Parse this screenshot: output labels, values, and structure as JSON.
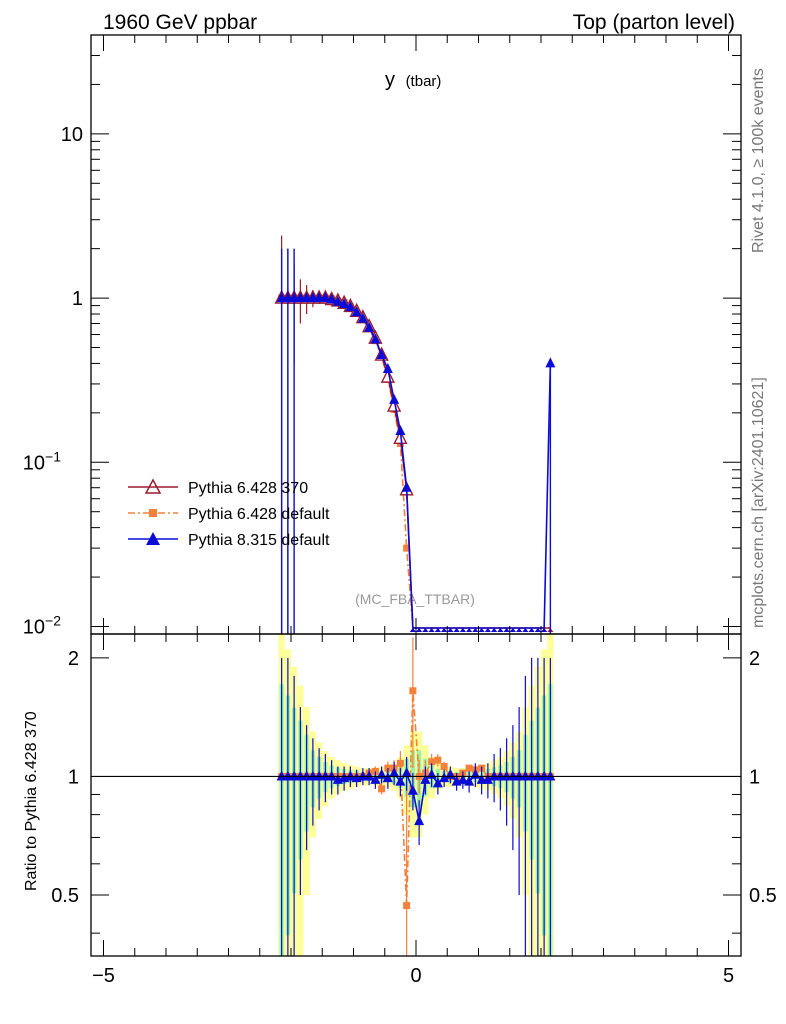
{
  "header": {
    "left": "1960 GeV ppbar",
    "right": "Top (parton level)"
  },
  "side_labels": {
    "top": "Rivet 4.1.0, ≥ 100k events",
    "bottom": "mcplots.cern.ch [arXiv:2401.10621]"
  },
  "chart_data": {
    "type": "line",
    "title_main": "y",
    "title_sub": "(tbar)",
    "analysis": "(MC_FBA_TTBAR)",
    "xlim": [
      -5.2,
      5.2
    ],
    "top_ylim": [
      0.009,
      40
    ],
    "top_yscale": "log",
    "top_ticks": [
      {
        "v": 10,
        "label": "10"
      },
      {
        "v": 1,
        "label": "1"
      },
      {
        "v": 0.1,
        "label": "10",
        "sup": "−1"
      },
      {
        "v": 0.01,
        "label": "10",
        "sup": "−2"
      }
    ],
    "ratio_ylabel": "Ratio to Pythia 6.428 370",
    "ratio_ylim": [
      0.35,
      2.3
    ],
    "ratio_ticks": [
      {
        "v": 2,
        "label": "2"
      },
      {
        "v": 1,
        "label": "1"
      },
      {
        "v": 0.5,
        "label": "0.5"
      }
    ],
    "x_ticks": [
      {
        "v": -5,
        "label": "−5"
      },
      {
        "v": 0,
        "label": "0"
      },
      {
        "v": 5,
        "label": "5"
      }
    ],
    "x": [
      -2.15,
      -2.05,
      -1.95,
      -1.85,
      -1.75,
      -1.65,
      -1.55,
      -1.45,
      -1.35,
      -1.25,
      -1.15,
      -1.05,
      -0.95,
      -0.85,
      -0.75,
      -0.65,
      -0.55,
      -0.45,
      -0.35,
      -0.25,
      -0.15,
      -0.05,
      0.05,
      0.15,
      0.25,
      0.35,
      0.45,
      0.55,
      0.65,
      0.75,
      0.85,
      0.95,
      1.05,
      1.15,
      1.25,
      1.35,
      1.45,
      1.55,
      1.65,
      1.75,
      1.85,
      1.95,
      2.05,
      2.15
    ],
    "series": [
      {
        "name": "Pythia 6.428 370",
        "color": "#9b1c2c",
        "marker": "triangle-open",
        "dash": "",
        "values": [
          1.0,
          1.0,
          1.0,
          1.0,
          1.0,
          1.0,
          1.0,
          1.0,
          0.98,
          0.96,
          0.93,
          0.89,
          0.83,
          0.76,
          0.67,
          0.57,
          0.45,
          0.33,
          0.22,
          0.14,
          0.068,
          0.0,
          0.0,
          0.0,
          0.0,
          0.0,
          0.0,
          0.0,
          0.0,
          0.0,
          0.0,
          0.0,
          0.0,
          0.0,
          0.0,
          0.0,
          0.0,
          0.0,
          0.0,
          0.0,
          0.0,
          0.0,
          0.0,
          0.0
        ],
        "err": [
          1.4,
          1.0,
          0.6,
          0.3,
          0.2,
          0.12,
          0.08,
          0.07,
          0.06,
          0.05,
          0.04,
          0.04,
          0.03,
          0.03,
          0.03,
          0.02,
          0.02,
          0.02,
          0.02,
          0.012,
          0.008,
          0,
          0,
          0,
          0,
          0,
          0,
          0,
          0,
          0,
          0,
          0,
          0,
          0,
          0,
          0,
          0,
          0,
          0,
          0,
          0,
          0,
          0,
          0
        ]
      },
      {
        "name": "Pythia 6.428 default",
        "color": "#f4813b",
        "marker": "square",
        "dash": "7,3,2,3",
        "values": [
          1.0,
          1.0,
          1.0,
          1.0,
          1.0,
          1.0,
          1.0,
          1.0,
          0.99,
          0.96,
          0.94,
          0.88,
          0.82,
          0.74,
          0.65,
          0.55,
          0.44,
          0.32,
          0.21,
          0.13,
          0.03,
          0.0,
          0.0,
          0.0,
          0.0,
          0.0,
          0.0,
          0.0,
          0.0,
          0.0,
          0.0,
          0.0,
          0.0,
          0.0,
          0.0,
          0.0,
          0.0,
          0.0,
          0.0,
          0.0,
          0.0,
          0.0,
          0.0,
          0.0
        ]
      },
      {
        "name": "Pythia 8.315 default",
        "color": "#0b0bd8",
        "marker": "triangle",
        "dash": "",
        "values": [
          1.0,
          1.0,
          1.0,
          1.0,
          1.0,
          1.0,
          1.0,
          1.0,
          0.98,
          0.95,
          0.92,
          0.88,
          0.82,
          0.75,
          0.66,
          0.56,
          0.45,
          0.37,
          0.24,
          0.155,
          0.07,
          0.0,
          0.0,
          0.0,
          0.0,
          0.0,
          0.0,
          0.0,
          0.0,
          0.0,
          0.0,
          0.0,
          0.0,
          0.0,
          0.0,
          0.0,
          0.0,
          0.0,
          0.0,
          0.0,
          0.0,
          0.0,
          0.0,
          0.4
        ]
      }
    ],
    "ratio_series": [
      {
        "name": "Pythia 6.428 default",
        "values": [
          1.0,
          1.0,
          1.0,
          1.0,
          1.0,
          1.0,
          1.0,
          1.0,
          1.0,
          1.0,
          1.0,
          1.0,
          1.0,
          1.0,
          1.02,
          1.03,
          0.93,
          1.05,
          1.05,
          1.08,
          0.47,
          1.65,
          1.0,
          1.02,
          1.09,
          1.1,
          1.06,
          1.0,
          1.0,
          1.02,
          1.05,
          1.04,
          1.05,
          1.0,
          1.0,
          1.0,
          1.0,
          1.0,
          1.0,
          1.0,
          1.0,
          1.0,
          1.0,
          1.0
        ],
        "err": [
          0,
          0,
          0,
          0,
          0,
          0,
          0,
          0,
          0,
          0,
          0,
          0,
          0,
          0,
          0.03,
          0.03,
          0.03,
          0.04,
          0.05,
          0.08,
          0.5,
          0.6,
          0.1,
          0.08,
          0.05,
          0.04,
          0.03,
          0.03,
          0,
          0,
          0,
          0,
          0,
          0,
          0,
          0,
          0,
          0,
          0,
          0,
          0,
          0,
          0,
          0
        ]
      },
      {
        "name": "Pythia 8.315 default",
        "values": [
          1.0,
          1.0,
          1.0,
          1.0,
          1.0,
          1.0,
          1.0,
          1.0,
          1.0,
          0.98,
          0.99,
          1.0,
          0.99,
          1.0,
          1.0,
          0.98,
          1.01,
          0.99,
          1.02,
          0.97,
          1.02,
          0.92,
          0.77,
          0.98,
          1.01,
          0.96,
          0.99,
          1.01,
          0.97,
          0.98,
          0.97,
          1.01,
          0.98,
          0.98,
          1.0,
          1.0,
          1.0,
          1.0,
          1.0,
          1.0,
          1.0,
          1.0,
          1.0,
          1.0
        ],
        "err": [
          1.0,
          1.0,
          0.8,
          0.5,
          0.35,
          0.25,
          0.18,
          0.14,
          0.1,
          0.08,
          0.07,
          0.06,
          0.05,
          0.05,
          0.05,
          0.05,
          0.05,
          0.06,
          0.07,
          0.08,
          0.1,
          0.1,
          0.1,
          0.08,
          0.07,
          0.06,
          0.05,
          0.05,
          0.05,
          0.05,
          0.06,
          0.07,
          0.08,
          0.1,
          0.14,
          0.18,
          0.25,
          0.35,
          0.5,
          0.8,
          1.0,
          1.0,
          1.0,
          1.0
        ]
      }
    ],
    "ratio_band_halfwidth": [
      1.3,
      1.1,
      0.9,
      0.7,
      0.5,
      0.3,
      0.22,
      0.16,
      0.12,
      0.1,
      0.08,
      0.07,
      0.06,
      0.05,
      0.05,
      0.05,
      0.06,
      0.06,
      0.08,
      0.12,
      0.2,
      0.3,
      0.3,
      0.2,
      0.12,
      0.08,
      0.06,
      0.06,
      0.05,
      0.05,
      0.05,
      0.06,
      0.07,
      0.08,
      0.1,
      0.12,
      0.16,
      0.22,
      0.3,
      0.5,
      0.7,
      0.9,
      1.1,
      1.3
    ]
  }
}
